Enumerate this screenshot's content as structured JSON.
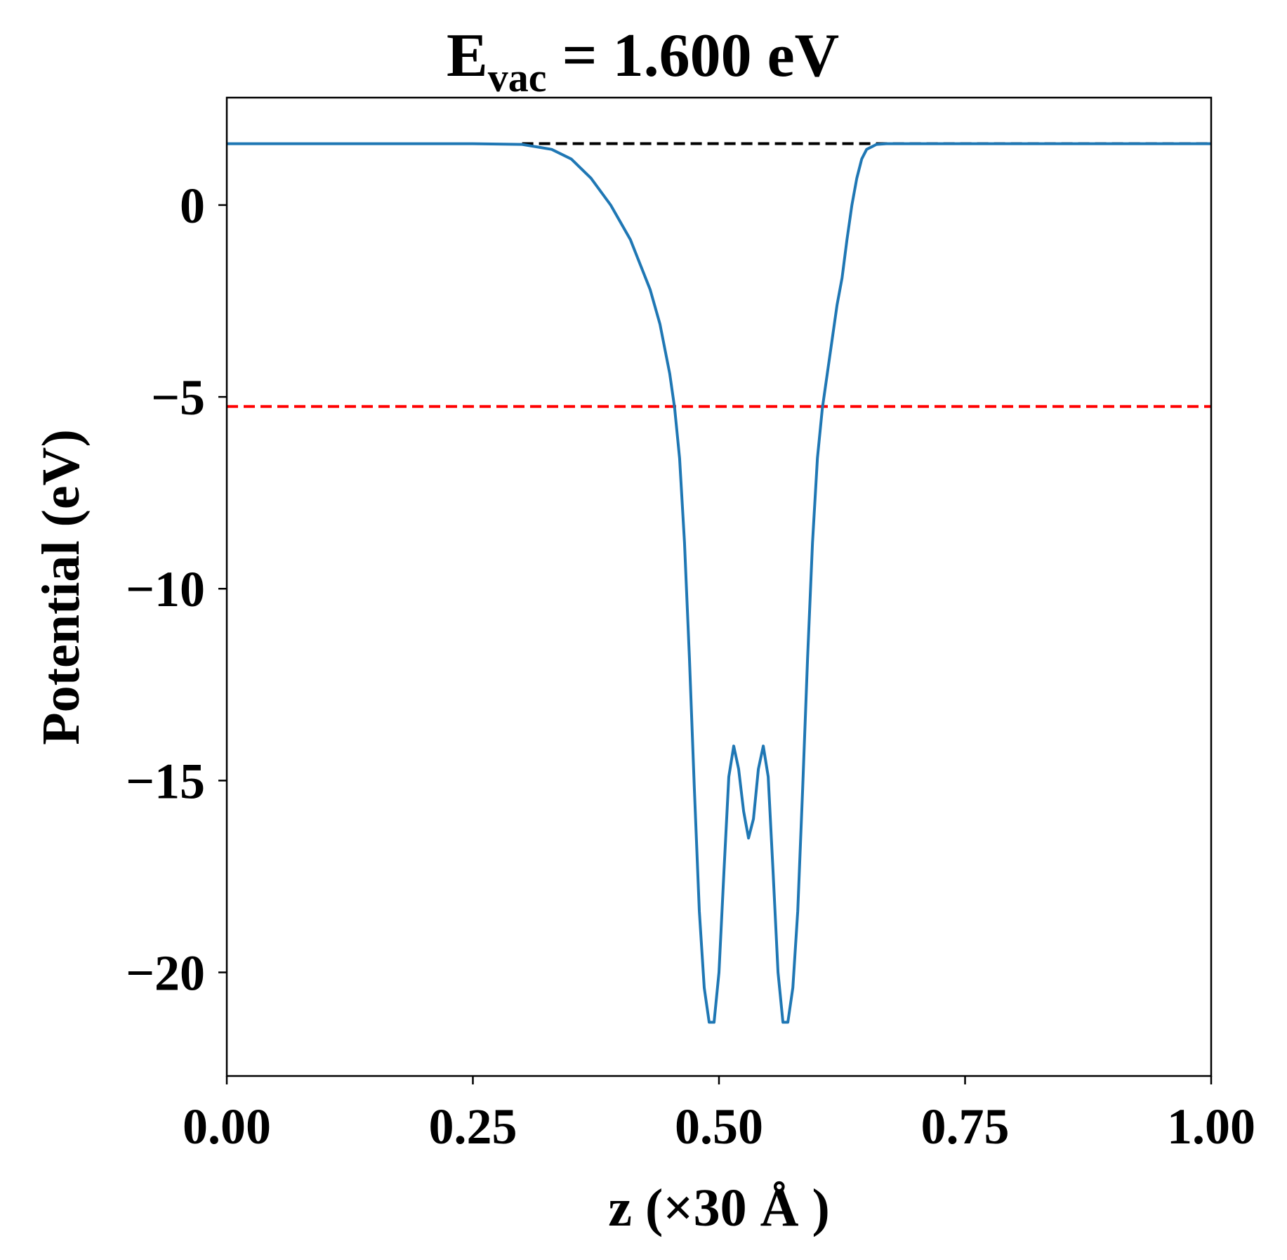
{
  "chart_data": {
    "type": "line",
    "title": {
      "main": "E",
      "subscript": "vac",
      "rest": " = 1.600 eV"
    },
    "xlabel": "z (×30 Å )",
    "ylabel": "Potential (eV)",
    "xlim": [
      0.0,
      1.0
    ],
    "ylim": [
      -22.7,
      2.8
    ],
    "x_ticks": [
      0.0,
      0.25,
      0.5,
      0.75,
      1.0
    ],
    "x_tick_labels": [
      "0.00",
      "0.25",
      "0.50",
      "0.75",
      "1.00"
    ],
    "y_ticks": [
      0,
      -5,
      -10,
      -15,
      -20
    ],
    "y_tick_labels": [
      "0",
      "−5",
      "−10",
      "−15",
      "−20"
    ],
    "grid": false,
    "reference_lines": [
      {
        "y": 1.6,
        "color": "#000000",
        "style": "dashed",
        "x_range": [
          0.3,
          1.0
        ]
      },
      {
        "y": -5.25,
        "color": "#ff0000",
        "style": "dashed",
        "x_range": [
          0.0,
          1.0
        ]
      }
    ],
    "series": [
      {
        "color": "#1f77b4",
        "x": [
          0.0,
          0.05,
          0.1,
          0.15,
          0.2,
          0.25,
          0.3,
          0.33,
          0.35,
          0.37,
          0.39,
          0.41,
          0.43,
          0.44,
          0.45,
          0.455,
          0.46,
          0.465,
          0.47,
          0.475,
          0.48,
          0.485,
          0.49,
          0.495,
          0.5,
          0.505,
          0.51,
          0.515,
          0.52,
          0.525,
          0.53,
          0.535,
          0.54,
          0.545,
          0.55,
          0.555,
          0.56,
          0.565,
          0.57,
          0.575,
          0.58,
          0.585,
          0.59,
          0.595,
          0.6,
          0.605,
          0.61,
          0.615,
          0.62,
          0.625,
          0.63,
          0.635,
          0.64,
          0.645,
          0.65,
          0.66,
          0.67,
          0.69,
          0.71,
          0.73,
          0.75,
          0.77,
          0.8,
          0.85,
          0.9,
          0.95,
          1.0
        ],
        "y": [
          1.6,
          1.6,
          1.6,
          1.6,
          1.6,
          1.6,
          1.58,
          1.45,
          1.2,
          0.7,
          0.0,
          -0.9,
          -2.2,
          -3.1,
          -4.4,
          -5.3,
          -6.6,
          -8.8,
          -11.8,
          -15.2,
          -18.4,
          -20.4,
          -21.3,
          -21.3,
          -20.0,
          -17.4,
          -14.9,
          -14.1,
          -14.7,
          -15.8,
          -16.5,
          -16.0,
          -14.7,
          -14.1,
          -14.9,
          -17.4,
          -20.0,
          -21.3,
          -21.3,
          -20.4,
          -18.4,
          -15.2,
          -11.8,
          -8.8,
          -6.6,
          -5.3,
          -4.4,
          -3.5,
          -2.6,
          -1.9,
          -0.9,
          0.0,
          0.7,
          1.2,
          1.45,
          1.58,
          1.6,
          1.6,
          1.6,
          1.6,
          1.6,
          1.6,
          1.6,
          1.6,
          1.6,
          1.6,
          1.6
        ]
      }
    ]
  }
}
